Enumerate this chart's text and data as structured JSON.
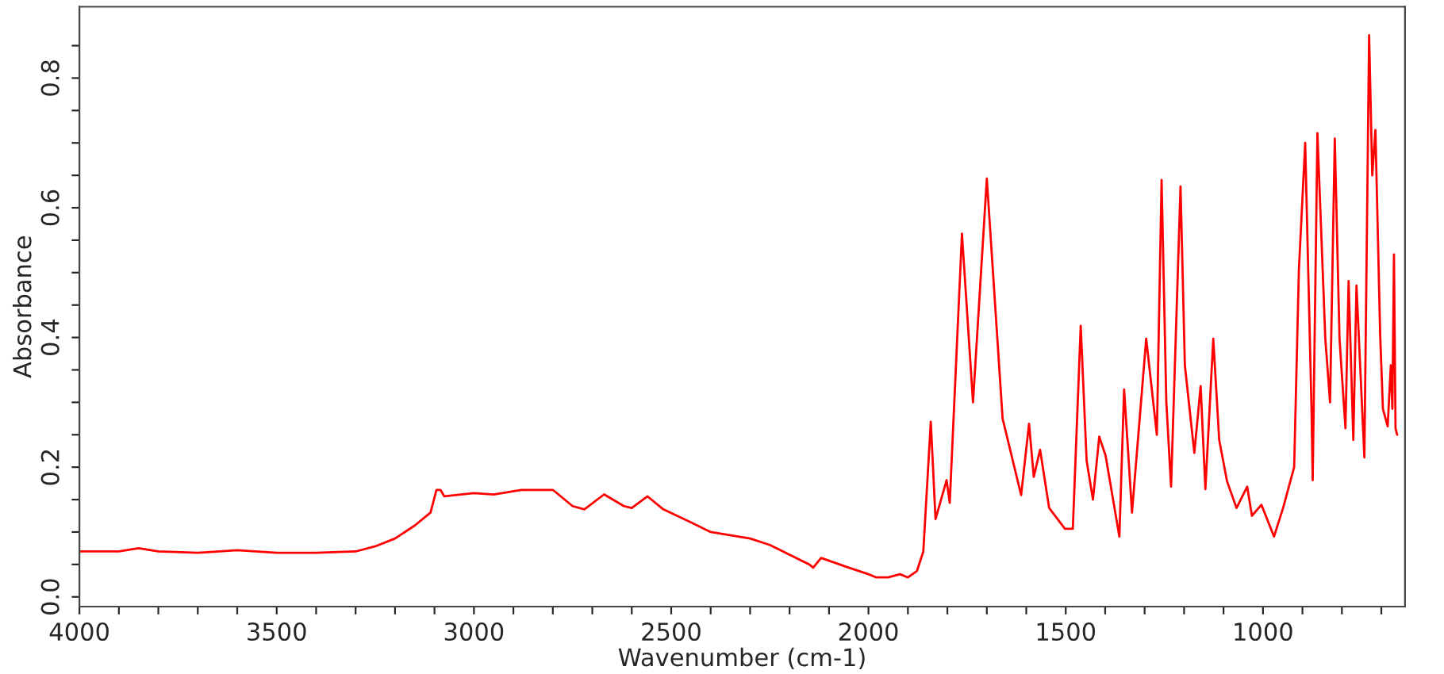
{
  "chart_data": {
    "type": "line",
    "xlabel": "Wavenumber (cm-1)",
    "ylabel": "Absorbance",
    "xlim": [
      4000,
      640
    ],
    "ylim": [
      -0.015,
      0.91
    ],
    "xticks": [
      4000,
      {
        "value": 3900,
        "label": null
      },
      {
        "value": 3800,
        "label": null
      },
      {
        "value": 3700,
        "label": null
      },
      {
        "value": 3600,
        "label": null
      },
      3500,
      {
        "value": 3400,
        "label": null
      },
      {
        "value": 3300,
        "label": null
      },
      {
        "value": 3200,
        "label": null
      },
      {
        "value": 3100,
        "label": null
      },
      3000,
      {
        "value": 2900,
        "label": null
      },
      {
        "value": 2800,
        "label": null
      },
      {
        "value": 2700,
        "label": null
      },
      {
        "value": 2600,
        "label": null
      },
      2500,
      {
        "value": 2400,
        "label": null
      },
      {
        "value": 2300,
        "label": null
      },
      {
        "value": 2200,
        "label": null
      },
      {
        "value": 2100,
        "label": null
      },
      2000,
      {
        "value": 1900,
        "label": null
      },
      {
        "value": 1800,
        "label": null
      },
      {
        "value": 1700,
        "label": null
      },
      {
        "value": 1600,
        "label": null
      },
      1500,
      {
        "value": 1400,
        "label": null
      },
      {
        "value": 1300,
        "label": null
      },
      {
        "value": 1200,
        "label": null
      },
      {
        "value": 1100,
        "label": null
      },
      1000,
      {
        "value": 900,
        "label": null
      },
      {
        "value": 800,
        "label": null
      },
      {
        "value": 700,
        "label": null
      }
    ],
    "yticks": [
      {
        "value": 0,
        "label": "0.0"
      },
      {
        "value": 0.05,
        "label": null
      },
      {
        "value": 0.1,
        "label": null
      },
      {
        "value": 0.15,
        "label": null
      },
      0.2,
      {
        "value": 0.25,
        "label": null
      },
      {
        "value": 0.3,
        "label": null
      },
      {
        "value": 0.35,
        "label": null
      },
      0.4,
      {
        "value": 0.45,
        "label": null
      },
      {
        "value": 0.5,
        "label": null
      },
      {
        "value": 0.55,
        "label": null
      },
      0.6,
      {
        "value": 0.65,
        "label": null
      },
      {
        "value": 0.7,
        "label": null
      },
      {
        "value": 0.75,
        "label": null
      },
      0.8,
      {
        "value": 0.85,
        "label": null
      }
    ],
    "grid": false,
    "legend": false,
    "marker": "none",
    "line_style": "solid",
    "series": [
      {
        "color": "#ff0000",
        "x": [
          4000,
          3900,
          3850,
          3800,
          3700,
          3600,
          3500,
          3400,
          3300,
          3250,
          3200,
          3150,
          3110,
          3095,
          3085,
          3075,
          3000,
          2950,
          2880,
          2800,
          2750,
          2720,
          2670,
          2620,
          2600,
          2560,
          2520,
          2450,
          2400,
          2300,
          2250,
          2150,
          2140,
          2120,
          2050,
          2000,
          1980,
          1950,
          1920,
          1900,
          1877,
          1861,
          1842,
          1830,
          1802,
          1794,
          1763,
          1735,
          1700,
          1660,
          1613,
          1593,
          1581,
          1565,
          1542,
          1502,
          1482,
          1462,
          1447,
          1431,
          1415,
          1399,
          1364,
          1352,
          1332,
          1296,
          1269,
          1257,
          1245,
          1233,
          1209,
          1198,
          1174,
          1158,
          1146,
          1126,
          1111,
          1091,
          1067,
          1040,
          1028,
          1004,
          972,
          949,
          921,
          909,
          893,
          877,
          874,
          862,
          842,
          830,
          818,
          806,
          791,
          783,
          771,
          763,
          743,
          731,
          723,
          715,
          703,
          696,
          684,
          676,
          672,
          668,
          664,
          660
        ],
        "values": [
          0.07,
          0.07,
          0.075,
          0.07,
          0.068,
          0.072,
          0.068,
          0.068,
          0.07,
          0.078,
          0.09,
          0.11,
          0.13,
          0.165,
          0.165,
          0.155,
          0.16,
          0.158,
          0.165,
          0.165,
          0.14,
          0.135,
          0.158,
          0.14,
          0.137,
          0.155,
          0.135,
          0.115,
          0.1,
          0.09,
          0.08,
          0.05,
          0.045,
          0.06,
          0.045,
          0.035,
          0.03,
          0.03,
          0.035,
          0.03,
          0.04,
          0.07,
          0.27,
          0.12,
          0.18,
          0.145,
          0.56,
          0.3,
          0.645,
          0.275,
          0.157,
          0.267,
          0.185,
          0.227,
          0.137,
          0.105,
          0.105,
          0.418,
          0.21,
          0.15,
          0.247,
          0.218,
          0.093,
          0.32,
          0.13,
          0.398,
          0.25,
          0.643,
          0.3,
          0.17,
          0.633,
          0.357,
          0.222,
          0.325,
          0.166,
          0.398,
          0.242,
          0.178,
          0.137,
          0.17,
          0.125,
          0.142,
          0.093,
          0.137,
          0.2,
          0.504,
          0.7,
          0.29,
          0.18,
          0.715,
          0.398,
          0.3,
          0.707,
          0.398,
          0.26,
          0.487,
          0.242,
          0.48,
          0.215,
          0.866,
          0.65,
          0.72,
          0.405,
          0.29,
          0.263,
          0.357,
          0.29,
          0.528,
          0.26,
          0.25
        ]
      }
    ]
  }
}
